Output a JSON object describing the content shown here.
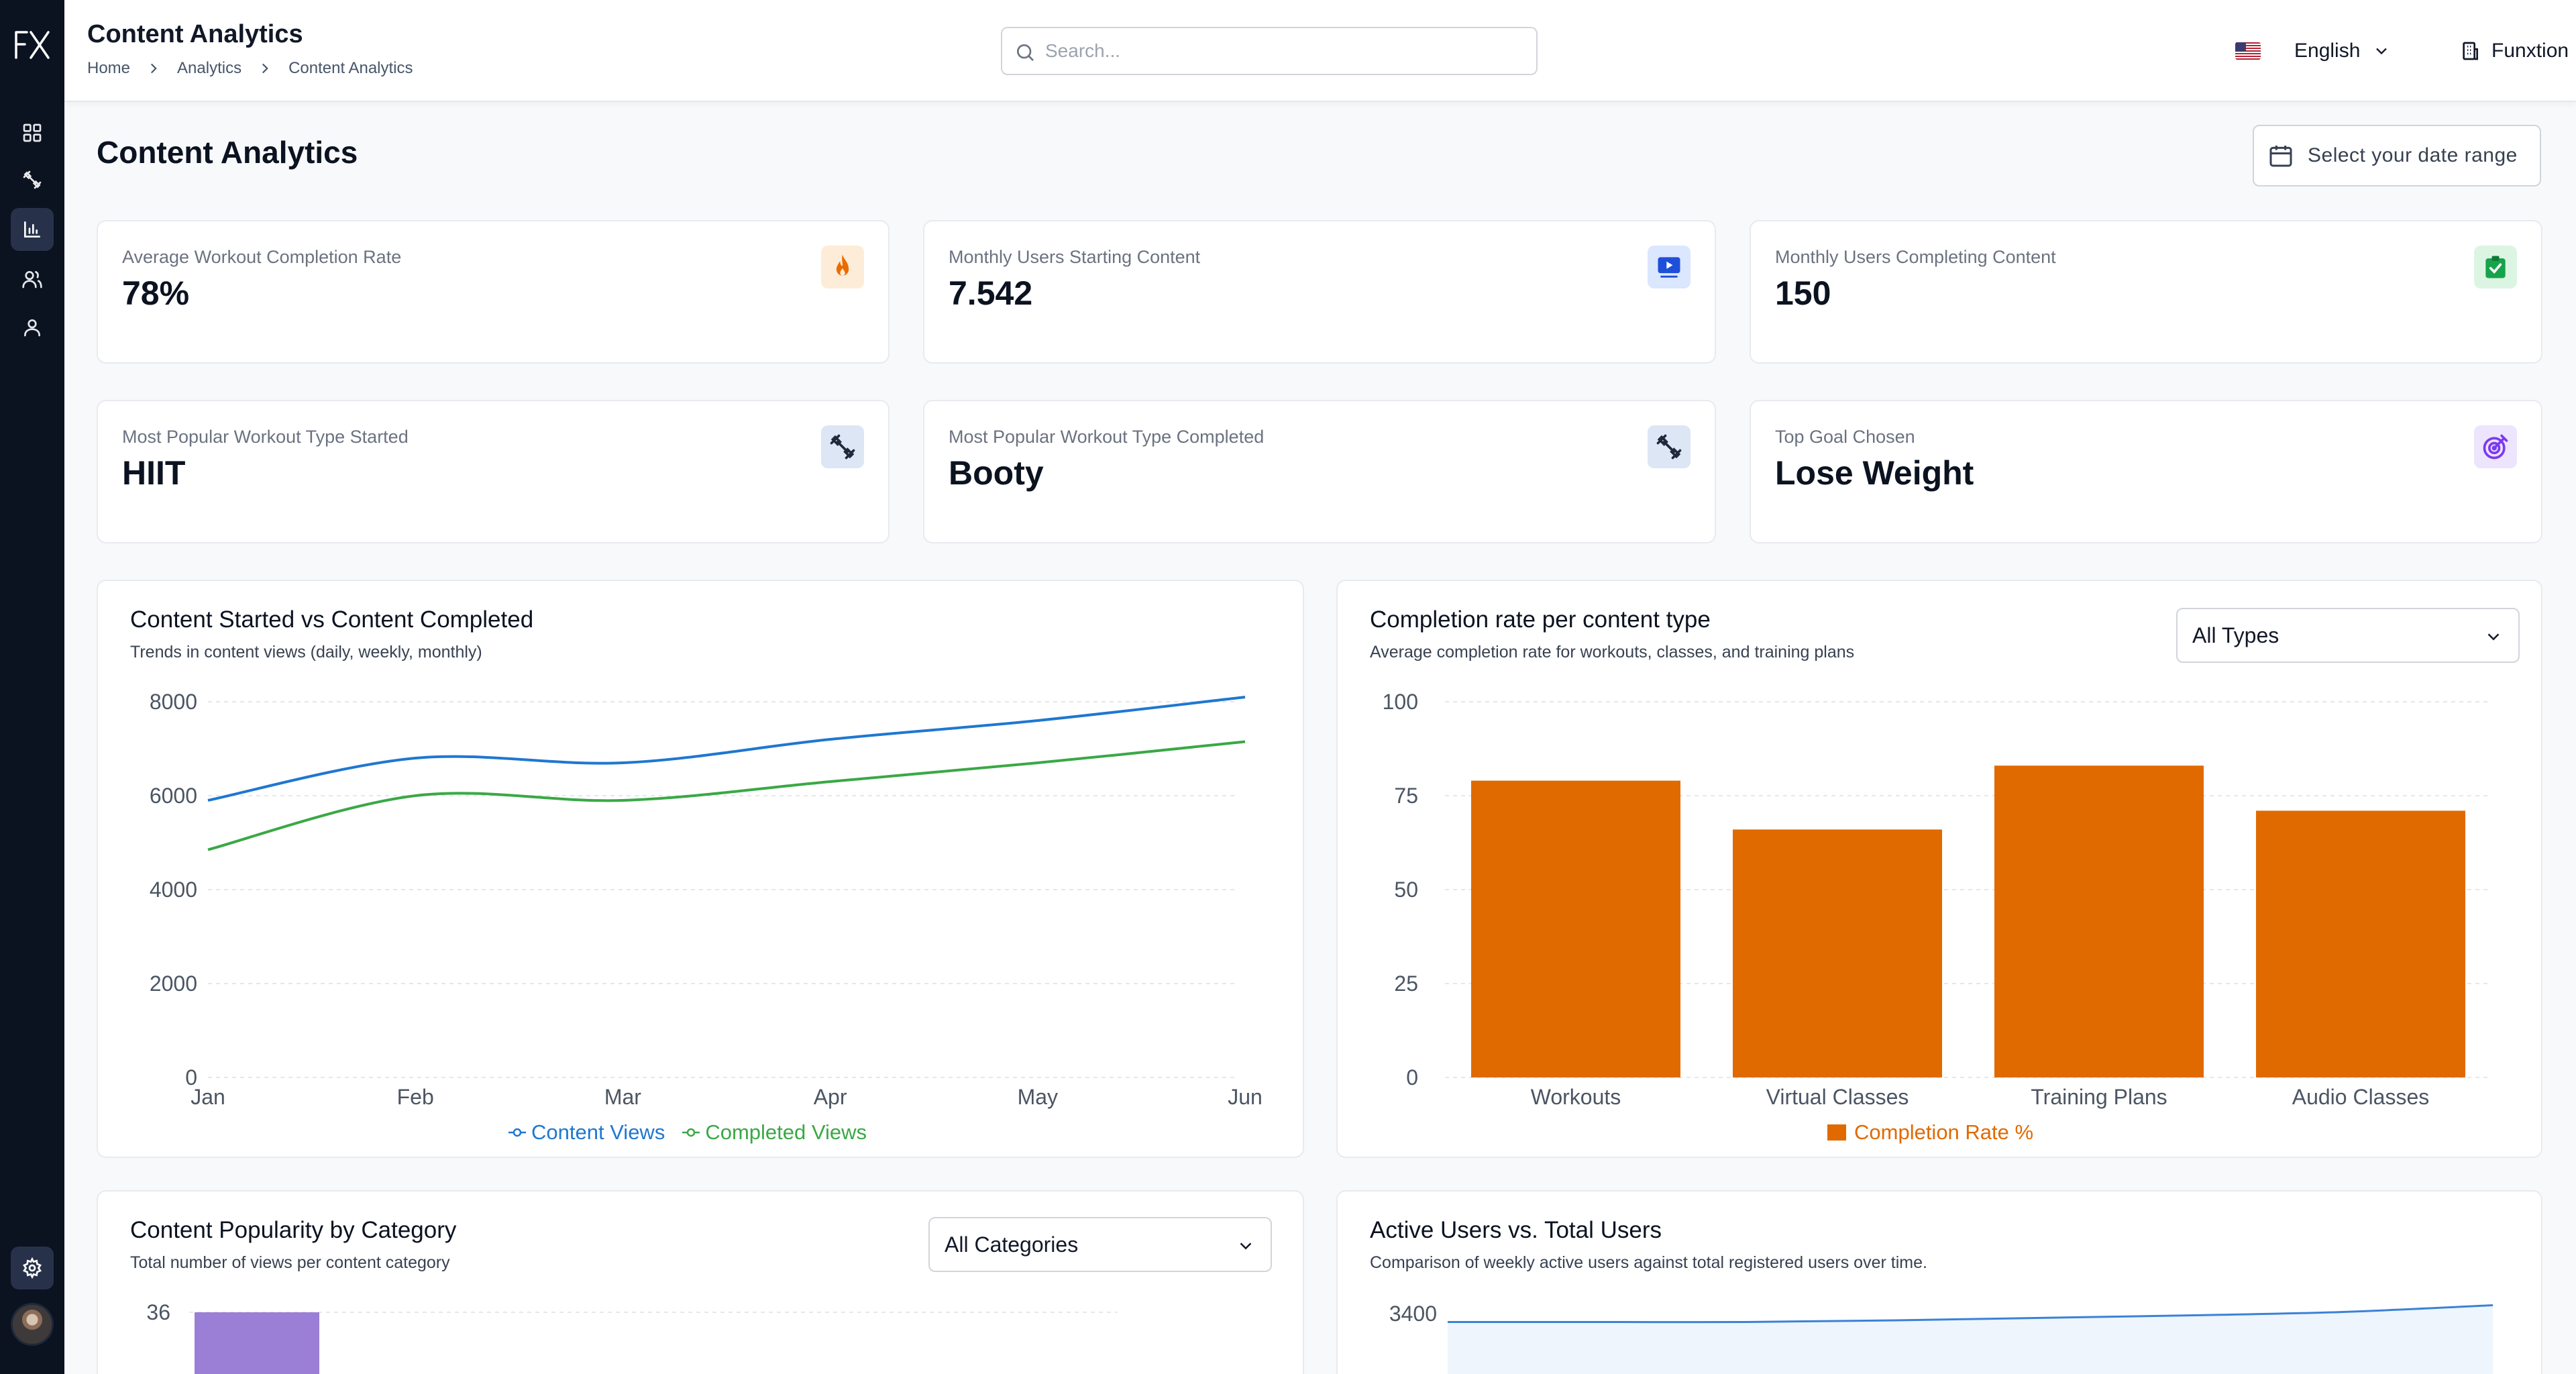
{
  "header": {
    "title": "Content Analytics",
    "breadcrumb": [
      "Home",
      "Analytics",
      "Content Analytics"
    ],
    "search_placeholder": "Search...",
    "language": "English",
    "organization": "Funxtion"
  },
  "page": {
    "title": "Content Analytics",
    "date_range_label": "Select your date range"
  },
  "kpis": [
    {
      "label": "Average Workout Completion Rate",
      "value": "78%",
      "icon": "flame-icon",
      "color": "#ea6c00",
      "bg": "#fdecd8"
    },
    {
      "label": "Monthly Users Starting Content",
      "value": "7.542",
      "icon": "play-video-icon",
      "color": "#1e4fd8",
      "bg": "#dbe6ff"
    },
    {
      "label": "Monthly Users Completing Content",
      "value": "150",
      "icon": "check-clipboard-icon",
      "color": "#16a34a",
      "bg": "#dcf5e3"
    },
    {
      "label": "Most Popular Workout Type Started",
      "value": "HIIT",
      "icon": "dumbbell-icon",
      "color": "#1e293b",
      "bg": "#dde6f5"
    },
    {
      "label": "Most Popular Workout Type Completed",
      "value": "Booty",
      "icon": "dumbbell-icon",
      "color": "#1e293b",
      "bg": "#dde6f5"
    },
    {
      "label": "Top Goal Chosen",
      "value": "Lose Weight",
      "icon": "target-icon",
      "color": "#7c3aed",
      "bg": "#ede4fd"
    }
  ],
  "line_card": {
    "title": "Content Started vs Content Completed",
    "subtitle": "Trends in content views (daily, weekly, monthly)"
  },
  "bar_card": {
    "title": "Completion rate per content type",
    "subtitle": "Average completion rate for workouts, classes, and training plans",
    "filter": "All Types"
  },
  "popularity_card": {
    "title": "Content Popularity by Category",
    "subtitle": "Total number of views per content category",
    "filter": "All Categories"
  },
  "users_card": {
    "title": "Active Users vs. Total Users",
    "subtitle": "Comparison of weekly active users against total registered users over time."
  },
  "chart_data": [
    {
      "type": "line",
      "title": "Content Started vs Content Completed",
      "categories": [
        "Jan",
        "Feb",
        "Mar",
        "Apr",
        "May",
        "Jun"
      ],
      "y_ticks": [
        "0",
        "2000",
        "4000",
        "6000",
        "8000"
      ],
      "ylim": [
        0,
        8000
      ],
      "grid": true,
      "legend": "bottom",
      "series": [
        {
          "name": "Content Views",
          "color": "#1f77d0",
          "values": [
            5900,
            6800,
            6700,
            7200,
            7600,
            8100
          ]
        },
        {
          "name": "Completed Views",
          "color": "#3aa845",
          "values": [
            4850,
            6000,
            5900,
            6300,
            6700,
            7150
          ]
        }
      ]
    },
    {
      "type": "bar",
      "title": "Completion rate per content type",
      "categories": [
        "Workouts",
        "Virtual Classes",
        "Training Plans",
        "Audio Classes"
      ],
      "y_ticks": [
        "0",
        "25",
        "50",
        "75",
        "100"
      ],
      "ylim": [
        0,
        100
      ],
      "grid": true,
      "legend": "bottom",
      "series": [
        {
          "name": "Completion Rate %",
          "color": "#e06a00",
          "values": [
            79,
            66,
            83,
            71
          ]
        }
      ]
    },
    {
      "type": "bar",
      "title": "Content Popularity by Category",
      "y_ticks": [
        "36"
      ],
      "series": [
        {
          "color": "#9b7ed6",
          "values": [
            36
          ]
        }
      ]
    },
    {
      "type": "area",
      "title": "Active Users vs. Total Users",
      "y_ticks": [
        "3400"
      ],
      "series": [
        {
          "color": "#3b82d6",
          "values": [
            3390,
            3390,
            3390,
            3392,
            3395,
            3398,
            3402,
            3410
          ]
        }
      ]
    }
  ]
}
